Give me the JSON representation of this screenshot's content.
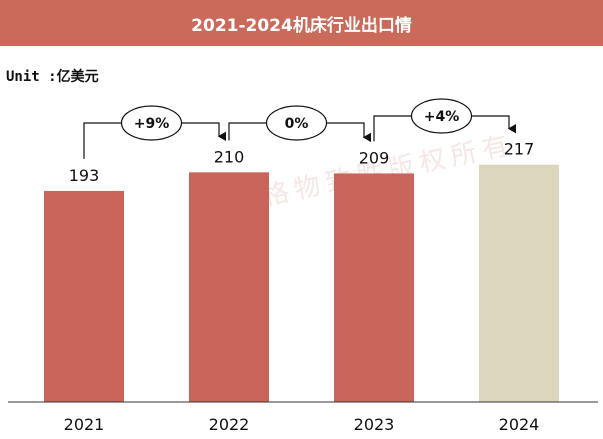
{
  "title": "2021-2024机床行业出口情",
  "unit_label": "Unit :亿美元",
  "watermark": "格物致胜版权所有",
  "colors": {
    "title_bg": "#c96a5a",
    "bar": "#c9655a",
    "bar_forecast": "#dcd6bd"
  },
  "chart_data": {
    "type": "bar",
    "categories": [
      "2021",
      "2022",
      "2023",
      "2024"
    ],
    "values": [
      193,
      210,
      209,
      217
    ],
    "ylim": [
      0,
      235
    ],
    "growth": [
      {
        "from": "2021",
        "to": "2022",
        "label": "+9%"
      },
      {
        "from": "2022",
        "to": "2023",
        "label": "0%"
      },
      {
        "from": "2023",
        "to": "2024",
        "label": "+4%"
      }
    ],
    "xlabel": "",
    "ylabel": ""
  }
}
